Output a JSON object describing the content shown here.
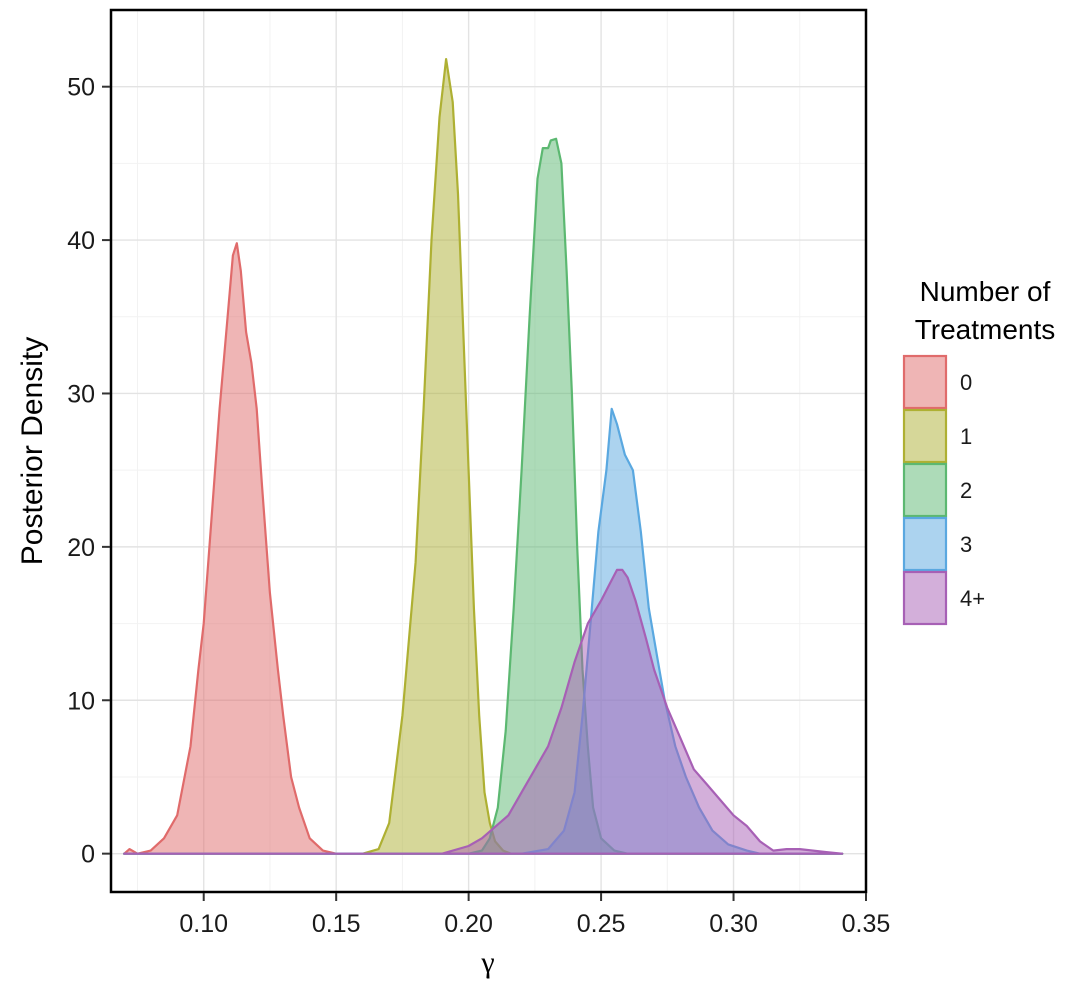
{
  "chart_data": {
    "type": "area",
    "title": "",
    "xlabel": "γ",
    "ylabel": "Posterior Density",
    "xlim": [
      0.065,
      0.35
    ],
    "ylim": [
      -2.5,
      55
    ],
    "xticks": [
      0.1,
      0.15,
      0.2,
      0.25,
      0.3,
      0.35
    ],
    "xtick_labels": [
      "0.10",
      "0.15",
      "0.20",
      "0.25",
      "0.30",
      "0.35"
    ],
    "yticks": [
      0,
      10,
      20,
      30,
      40,
      50
    ],
    "ytick_labels": [
      "0",
      "10",
      "20",
      "30",
      "40",
      "50"
    ],
    "grid": true,
    "legend": {
      "title": "Number of Treatments",
      "title_lines": [
        "Number of",
        "Treatments"
      ],
      "placement": "right"
    },
    "series": [
      {
        "name": "0",
        "color": "#E06B6B",
        "points": [
          [
            0.07,
            0
          ],
          [
            0.072,
            0.3
          ],
          [
            0.075,
            0
          ],
          [
            0.08,
            0.2
          ],
          [
            0.085,
            1
          ],
          [
            0.09,
            2.5
          ],
          [
            0.095,
            7
          ],
          [
            0.098,
            12
          ],
          [
            0.1,
            15
          ],
          [
            0.103,
            22
          ],
          [
            0.106,
            29
          ],
          [
            0.109,
            35
          ],
          [
            0.111,
            39
          ],
          [
            0.1125,
            39.8
          ],
          [
            0.114,
            38
          ],
          [
            0.116,
            34
          ],
          [
            0.118,
            32
          ],
          [
            0.12,
            29
          ],
          [
            0.122,
            24
          ],
          [
            0.125,
            17
          ],
          [
            0.128,
            12
          ],
          [
            0.13,
            9
          ],
          [
            0.133,
            5
          ],
          [
            0.136,
            3
          ],
          [
            0.14,
            1
          ],
          [
            0.145,
            0.2
          ],
          [
            0.15,
            0
          ],
          [
            0.341,
            0
          ]
        ]
      },
      {
        "name": "1",
        "color": "#AEB033",
        "points": [
          [
            0.07,
            0
          ],
          [
            0.16,
            0
          ],
          [
            0.166,
            0.3
          ],
          [
            0.17,
            2
          ],
          [
            0.175,
            9
          ],
          [
            0.18,
            19
          ],
          [
            0.183,
            29
          ],
          [
            0.186,
            40
          ],
          [
            0.189,
            48
          ],
          [
            0.1915,
            51.8
          ],
          [
            0.194,
            49
          ],
          [
            0.196,
            43
          ],
          [
            0.198,
            34
          ],
          [
            0.2,
            25
          ],
          [
            0.202,
            16
          ],
          [
            0.204,
            9
          ],
          [
            0.206,
            4
          ],
          [
            0.208,
            2
          ],
          [
            0.21,
            0.8
          ],
          [
            0.213,
            0.2
          ],
          [
            0.216,
            0
          ],
          [
            0.341,
            0
          ]
        ]
      },
      {
        "name": "2",
        "color": "#5CB871",
        "points": [
          [
            0.07,
            0
          ],
          [
            0.2,
            0
          ],
          [
            0.205,
            0.2
          ],
          [
            0.208,
            1
          ],
          [
            0.211,
            3
          ],
          [
            0.214,
            8
          ],
          [
            0.217,
            16
          ],
          [
            0.22,
            25
          ],
          [
            0.223,
            35
          ],
          [
            0.226,
            44
          ],
          [
            0.228,
            46
          ],
          [
            0.23,
            46
          ],
          [
            0.231,
            46.5
          ],
          [
            0.233,
            46.6
          ],
          [
            0.235,
            45
          ],
          [
            0.237,
            38
          ],
          [
            0.239,
            30
          ],
          [
            0.241,
            20
          ],
          [
            0.243,
            12
          ],
          [
            0.245,
            7
          ],
          [
            0.247,
            3
          ],
          [
            0.25,
            1
          ],
          [
            0.255,
            0.2
          ],
          [
            0.26,
            0
          ],
          [
            0.341,
            0
          ]
        ]
      },
      {
        "name": "3",
        "color": "#5AA8E0",
        "points": [
          [
            0.07,
            0
          ],
          [
            0.22,
            0
          ],
          [
            0.23,
            0.3
          ],
          [
            0.236,
            1.5
          ],
          [
            0.24,
            4
          ],
          [
            0.243,
            9
          ],
          [
            0.246,
            15
          ],
          [
            0.249,
            21
          ],
          [
            0.252,
            25
          ],
          [
            0.254,
            29
          ],
          [
            0.256,
            28
          ],
          [
            0.259,
            26
          ],
          [
            0.262,
            25
          ],
          [
            0.265,
            21
          ],
          [
            0.268,
            16
          ],
          [
            0.271,
            13
          ],
          [
            0.274,
            10
          ],
          [
            0.278,
            7
          ],
          [
            0.282,
            5
          ],
          [
            0.287,
            3
          ],
          [
            0.292,
            1.5
          ],
          [
            0.298,
            0.6
          ],
          [
            0.305,
            0.2
          ],
          [
            0.31,
            0
          ],
          [
            0.341,
            0
          ]
        ]
      },
      {
        "name": "4+",
        "color": "#A760B5",
        "points": [
          [
            0.07,
            0
          ],
          [
            0.19,
            0
          ],
          [
            0.2,
            0.5
          ],
          [
            0.205,
            1
          ],
          [
            0.215,
            2.5
          ],
          [
            0.22,
            4
          ],
          [
            0.225,
            5.5
          ],
          [
            0.23,
            7
          ],
          [
            0.235,
            9.5
          ],
          [
            0.24,
            12.5
          ],
          [
            0.245,
            15
          ],
          [
            0.25,
            16.5
          ],
          [
            0.253,
            17.5
          ],
          [
            0.256,
            18.5
          ],
          [
            0.258,
            18.5
          ],
          [
            0.26,
            18
          ],
          [
            0.263,
            16.5
          ],
          [
            0.267,
            14
          ],
          [
            0.27,
            12
          ],
          [
            0.275,
            9.5
          ],
          [
            0.28,
            7.5
          ],
          [
            0.285,
            5.5
          ],
          [
            0.29,
            4.5
          ],
          [
            0.295,
            3.5
          ],
          [
            0.3,
            2.5
          ],
          [
            0.305,
            1.8
          ],
          [
            0.31,
            0.8
          ],
          [
            0.315,
            0.2
          ],
          [
            0.32,
            0.3
          ],
          [
            0.325,
            0.3
          ],
          [
            0.33,
            0.2
          ],
          [
            0.335,
            0.1
          ],
          [
            0.341,
            0
          ]
        ]
      }
    ]
  }
}
